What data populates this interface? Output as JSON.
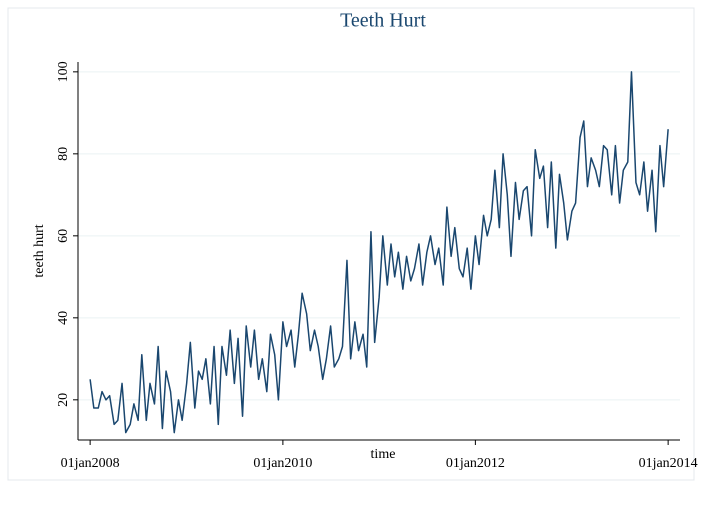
{
  "chart_data": {
    "type": "line",
    "title": "Teeth Hurt",
    "x_label": "time",
    "y_label": "teeth hurt",
    "color": "#1a476f",
    "grid": true,
    "x": [
      "2008-01-01",
      "2008-01-15",
      "2008-02-01",
      "2008-02-15",
      "2008-03-01",
      "2008-03-15",
      "2008-04-01",
      "2008-04-15",
      "2008-05-01",
      "2008-05-15",
      "2008-06-01",
      "2008-06-15",
      "2008-07-01",
      "2008-07-15",
      "2008-08-01",
      "2008-08-15",
      "2008-09-01",
      "2008-09-15",
      "2008-10-01",
      "2008-10-15",
      "2008-11-01",
      "2008-11-15",
      "2008-12-01",
      "2008-12-15",
      "2009-01-01",
      "2009-01-15",
      "2009-02-01",
      "2009-02-15",
      "2009-03-01",
      "2009-03-15",
      "2009-04-01",
      "2009-04-15",
      "2009-05-01",
      "2009-05-15",
      "2009-06-01",
      "2009-06-15",
      "2009-07-01",
      "2009-07-15",
      "2009-08-01",
      "2009-08-15",
      "2009-09-01",
      "2009-09-15",
      "2009-10-01",
      "2009-10-15",
      "2009-11-01",
      "2009-11-15",
      "2009-12-01",
      "2009-12-15",
      "2010-01-01",
      "2010-01-15",
      "2010-02-01",
      "2010-02-15",
      "2010-03-01",
      "2010-03-15",
      "2010-04-01",
      "2010-04-15",
      "2010-05-01",
      "2010-05-15",
      "2010-06-01",
      "2010-06-15",
      "2010-07-01",
      "2010-07-15",
      "2010-08-01",
      "2010-08-15",
      "2010-09-01",
      "2010-09-15",
      "2010-10-01",
      "2010-10-15",
      "2010-11-01",
      "2010-11-15",
      "2010-12-01",
      "2010-12-15",
      "2011-01-01",
      "2011-01-15",
      "2011-02-01",
      "2011-02-15",
      "2011-03-01",
      "2011-03-15",
      "2011-04-01",
      "2011-04-15",
      "2011-05-01",
      "2011-05-15",
      "2011-06-01",
      "2011-06-15",
      "2011-07-01",
      "2011-07-15",
      "2011-08-01",
      "2011-08-15",
      "2011-09-01",
      "2011-09-15",
      "2011-10-01",
      "2011-10-15",
      "2011-11-01",
      "2011-11-15",
      "2011-12-01",
      "2011-12-15",
      "2012-01-01",
      "2012-01-15",
      "2012-02-01",
      "2012-02-15",
      "2012-03-01",
      "2012-03-15",
      "2012-04-01",
      "2012-04-15",
      "2012-05-01",
      "2012-05-15",
      "2012-06-01",
      "2012-06-15",
      "2012-07-01",
      "2012-07-15",
      "2012-08-01",
      "2012-08-15",
      "2012-09-01",
      "2012-09-15",
      "2012-10-01",
      "2012-10-15",
      "2012-11-01",
      "2012-11-15",
      "2012-12-01",
      "2012-12-15",
      "2013-01-01",
      "2013-01-15",
      "2013-02-01",
      "2013-02-15",
      "2013-03-01",
      "2013-03-15",
      "2013-04-01",
      "2013-04-15",
      "2013-05-01",
      "2013-05-15",
      "2013-06-01",
      "2013-06-15",
      "2013-07-01",
      "2013-07-15",
      "2013-08-01",
      "2013-08-15",
      "2013-09-01",
      "2013-09-15",
      "2013-10-01",
      "2013-10-15",
      "2013-11-01",
      "2013-11-15",
      "2013-12-01",
      "2013-12-15",
      "2014-01-01"
    ],
    "values": [
      25,
      18,
      18,
      22,
      20,
      21,
      14,
      15,
      24,
      12,
      14,
      19,
      15,
      31,
      15,
      24,
      19,
      33,
      13,
      27,
      22,
      12,
      20,
      15,
      24,
      34,
      18,
      27,
      25,
      30,
      19,
      33,
      14,
      33,
      26,
      37,
      24,
      35,
      16,
      38,
      28,
      37,
      25,
      30,
      22,
      36,
      31,
      20,
      39,
      33,
      37,
      28,
      36,
      46,
      41,
      32,
      37,
      33,
      25,
      30,
      38,
      28,
      30,
      33,
      54,
      30,
      39,
      32,
      36,
      28,
      61,
      34,
      45,
      60,
      48,
      58,
      50,
      56,
      47,
      55,
      49,
      52,
      58,
      48,
      56,
      60,
      53,
      57,
      48,
      67,
      55,
      62,
      52,
      50,
      57,
      47,
      60,
      53,
      65,
      60,
      64,
      76,
      62,
      80,
      70,
      55,
      73,
      64,
      71,
      72,
      60,
      81,
      74,
      77,
      62,
      78,
      57,
      75,
      68,
      59,
      66,
      68,
      84,
      88,
      72,
      79,
      76,
      72,
      82,
      81,
      70,
      82,
      68,
      76,
      78,
      100,
      73,
      70,
      78,
      66,
      76,
      61,
      82,
      72,
      86
    ],
    "xlim": [
      "2007-11-16",
      "2014-02-15"
    ],
    "xticks": [
      {
        "value": "2008-01-01",
        "label": "01jan2008"
      },
      {
        "value": "2010-01-01",
        "label": "01jan2010"
      },
      {
        "value": "2012-01-01",
        "label": "01jan2012"
      },
      {
        "value": "2014-01-01",
        "label": "01jan2014"
      }
    ],
    "ylim": [
      10.2,
      102.4
    ],
    "yticks": [
      20,
      40,
      60,
      80,
      100
    ]
  }
}
